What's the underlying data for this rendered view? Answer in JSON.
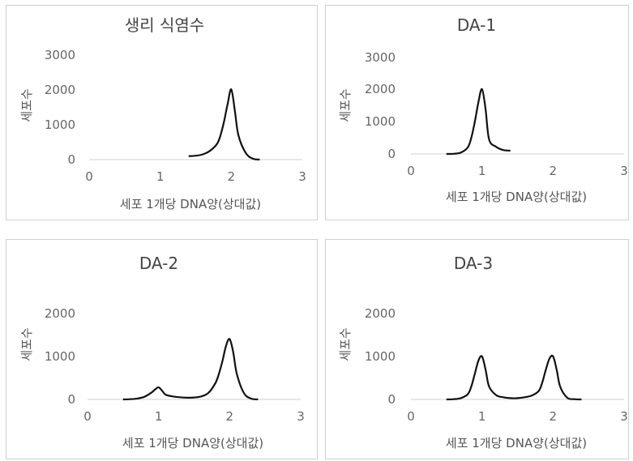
{
  "chart_data": [
    {
      "type": "line",
      "title": "생리 식염수",
      "xlabel": "세포 1개당 DNA양(상대값)",
      "ylabel": "세포수",
      "x_ticks": [
        "0",
        "1",
        "2",
        "3"
      ],
      "y_ticks": [
        "0",
        "1000",
        "2000",
        "3000"
      ],
      "xlim": [
        0,
        3
      ],
      "ylim": [
        0,
        3000
      ],
      "grid": false,
      "series": [
        {
          "x": [
            1.4,
            1.5,
            1.6,
            1.7,
            1.8,
            1.85,
            1.9,
            1.95,
            2.0,
            2.05,
            2.1,
            2.2,
            2.3,
            2.4
          ],
          "y": [
            100,
            110,
            150,
            250,
            450,
            700,
            1100,
            1600,
            2000,
            1400,
            700,
            200,
            30,
            0
          ]
        }
      ]
    },
    {
      "type": "line",
      "title": "DA-1",
      "xlabel": "세포 1개당 DNA양(상대값)",
      "ylabel": "세포수",
      "x_ticks": [
        "0",
        "1",
        "2",
        "3"
      ],
      "y_ticks": [
        "0",
        "1000",
        "2000",
        "3000"
      ],
      "xlim": [
        0,
        3
      ],
      "ylim": [
        0,
        3000
      ],
      "grid": false,
      "series": [
        {
          "x": [
            0.5,
            0.6,
            0.7,
            0.8,
            0.85,
            0.9,
            0.95,
            1.0,
            1.05,
            1.1,
            1.2,
            1.3,
            1.4
          ],
          "y": [
            0,
            5,
            40,
            200,
            500,
            1000,
            1600,
            2000,
            1400,
            450,
            220,
            120,
            100
          ]
        }
      ]
    },
    {
      "type": "line",
      "title": "DA-2",
      "xlabel": "세포 1개당 DNA양(상대값)",
      "ylabel": "세포수",
      "x_ticks": [
        "0",
        "1",
        "2",
        "3"
      ],
      "y_ticks": [
        "0",
        "1000",
        "2000"
      ],
      "xlim": [
        0,
        3
      ],
      "ylim": [
        0,
        2500
      ],
      "grid": false,
      "series": [
        {
          "x": [
            0.5,
            0.6,
            0.7,
            0.8,
            0.9,
            0.95,
            1.0,
            1.05,
            1.1,
            1.2,
            1.3,
            1.4,
            1.5,
            1.6,
            1.7,
            1.8,
            1.85,
            1.9,
            1.95,
            2.0,
            2.05,
            2.1,
            2.2,
            2.3,
            2.4
          ],
          "y": [
            0,
            5,
            20,
            60,
            160,
            230,
            280,
            200,
            110,
            70,
            50,
            40,
            45,
            70,
            150,
            380,
            600,
            900,
            1250,
            1400,
            1100,
            600,
            150,
            20,
            0
          ]
        }
      ]
    },
    {
      "type": "line",
      "title": "DA-3",
      "xlabel": "세포 1개당 DNA양(상대값)",
      "ylabel": "세포수",
      "x_ticks": [
        "0",
        "1",
        "2",
        "3"
      ],
      "y_ticks": [
        "0",
        "1000",
        "2000"
      ],
      "xlim": [
        0,
        3
      ],
      "ylim": [
        0,
        2500
      ],
      "grid": false,
      "series": [
        {
          "x": [
            0.5,
            0.6,
            0.7,
            0.8,
            0.85,
            0.9,
            0.95,
            1.0,
            1.05,
            1.1,
            1.2,
            1.3,
            1.4,
            1.5,
            1.6,
            1.7,
            1.8,
            1.85,
            1.9,
            1.95,
            2.0,
            2.05,
            2.1,
            2.2,
            2.3,
            2.4
          ],
          "y": [
            0,
            5,
            30,
            120,
            300,
            600,
            900,
            1000,
            700,
            300,
            100,
            50,
            30,
            30,
            50,
            90,
            200,
            400,
            700,
            950,
            1000,
            700,
            300,
            40,
            5,
            0
          ]
        }
      ]
    }
  ]
}
